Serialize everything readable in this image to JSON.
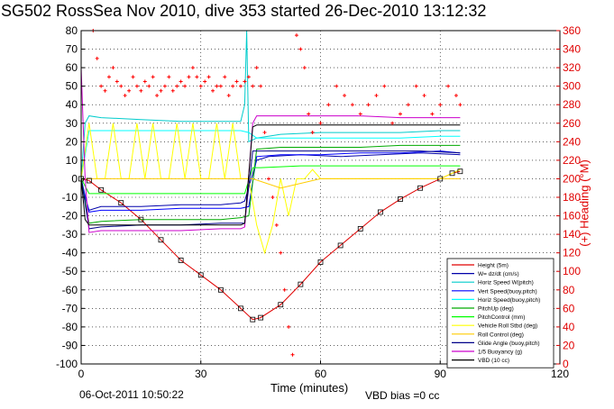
{
  "title": "SG502 RossSea Nov 2010, dive 353 started 26-Dec-2010 13:12:32",
  "footer": {
    "date": "06-Oct-2011 10:50:22",
    "vbd_bias": "VBD bias =0 cc"
  },
  "chart_data": {
    "type": "line",
    "xlabel": "Time (minutes)",
    "ylabel": "",
    "y2label": "(+) Heading (°M)",
    "xlim": [
      0,
      120
    ],
    "ylim": [
      -100,
      80
    ],
    "y2lim": [
      0,
      360
    ],
    "xticks": [
      0,
      30,
      60,
      90,
      120
    ],
    "yticks": [
      -100,
      -90,
      -80,
      -70,
      -60,
      -50,
      -40,
      -30,
      -20,
      -10,
      0,
      10,
      20,
      30,
      40,
      50,
      60,
      70,
      80
    ],
    "y2ticks": [
      0,
      20,
      40,
      60,
      80,
      100,
      120,
      140,
      160,
      180,
      200,
      220,
      240,
      260,
      280,
      300,
      320,
      340,
      360
    ],
    "grid": true,
    "legend_position": "bottom-right",
    "colors": {
      "height": "#e00000",
      "w": "#0000aa",
      "horiz_speed_w": "#00cccc",
      "vert_speed_buoy": "#0000ff",
      "horiz_speed_buoy": "#00ffff",
      "pitch_up": "#00aa00",
      "pitch_control": "#00ff00",
      "vehicle_roll": "#ffff00",
      "roll_control": "#ffcc00",
      "glide_angle": "#000088",
      "buoyancy": "#cc00cc",
      "vbd": "#000000",
      "heading": "#ff0000"
    },
    "series": [
      {
        "name": "Height (5m)",
        "key": "height",
        "x": [
          0,
          2,
          5,
          10,
          15,
          20,
          25,
          30,
          35,
          40,
          43,
          45,
          50,
          55,
          60,
          65,
          70,
          75,
          80,
          85,
          90,
          93,
          95
        ],
        "y": [
          0,
          -1,
          -6,
          -13,
          -22,
          -33,
          -44,
          -52,
          -60,
          -70,
          -76,
          -75,
          -68,
          -57,
          -45,
          -36,
          -27,
          -18,
          -11,
          -5,
          0,
          3,
          4
        ]
      },
      {
        "name": "W= dz/dt (cm/s)",
        "key": "w",
        "x": [
          0,
          1,
          2,
          5,
          15,
          25,
          35,
          40,
          41,
          44,
          47,
          55,
          65,
          75,
          85,
          95
        ],
        "y": [
          0,
          -10,
          -17,
          -15,
          -15,
          -14,
          -14,
          -13,
          -12,
          10,
          12,
          13,
          12,
          13,
          14,
          13
        ]
      },
      {
        "name": "Horiz Speed W(pitch)",
        "key": "horiz_speed_w",
        "x": [
          0,
          1,
          2,
          5,
          15,
          25,
          35,
          40,
          41,
          41.5,
          42,
          44,
          50,
          60,
          70,
          80,
          90,
          95
        ],
        "y": [
          0,
          30,
          34,
          33,
          32,
          31,
          31,
          31,
          40,
          80,
          20,
          22,
          24,
          25,
          25,
          25,
          26,
          26
        ]
      },
      {
        "name": "Vert Speed(buoy,pitch)",
        "key": "vert_speed_buoy",
        "x": [
          0,
          2,
          5,
          15,
          25,
          35,
          40,
          42,
          44,
          50,
          60,
          70,
          80,
          90,
          95
        ],
        "y": [
          0,
          -18,
          -17,
          -17,
          -16,
          -16,
          -16,
          -15,
          12,
          13,
          13,
          14,
          14,
          15,
          14
        ]
      },
      {
        "name": "Horiz Speed(buoy,pitch)",
        "key": "horiz_speed_buoy",
        "x": [
          0,
          2,
          5,
          15,
          25,
          35,
          40,
          42,
          44,
          50,
          60,
          70,
          80,
          90,
          95
        ],
        "y": [
          0,
          26,
          26,
          26,
          26,
          26,
          26,
          25,
          22,
          22,
          22,
          22,
          22,
          23,
          23
        ]
      },
      {
        "name": "PitchUp (deg)",
        "key": "pitch_up",
        "x": [
          0,
          2,
          5,
          15,
          25,
          35,
          40,
          42,
          44,
          50,
          60,
          70,
          80,
          90,
          95
        ],
        "y": [
          0,
          -24,
          -23,
          -22,
          -22,
          -22,
          -21,
          -20,
          16,
          17,
          17,
          17,
          18,
          18,
          18
        ]
      },
      {
        "name": "PitchControl (mm)",
        "key": "pitch_control",
        "x": [
          0,
          2,
          5,
          15,
          25,
          35,
          41,
          43,
          45,
          55,
          65,
          75,
          85,
          95
        ],
        "y": [
          0,
          -8,
          -8,
          -8,
          -8,
          -8,
          -8,
          6,
          6,
          7,
          7,
          7,
          7,
          7
        ]
      },
      {
        "name": "Vehicle Roll Stbd (deg)",
        "key": "vehicle_roll",
        "x": [
          0,
          2,
          4,
          6,
          8,
          10,
          12,
          14,
          16,
          18,
          20,
          22,
          24,
          26,
          28,
          30,
          32,
          34,
          36,
          38,
          40,
          42,
          44,
          46,
          48,
          50,
          52,
          54,
          56,
          58,
          60,
          65,
          70,
          75,
          80,
          85,
          90,
          95
        ],
        "y": [
          0,
          30,
          0,
          0,
          30,
          0,
          0,
          30,
          0,
          30,
          0,
          0,
          30,
          0,
          30,
          0,
          0,
          30,
          0,
          30,
          0,
          0,
          -25,
          -40,
          -25,
          0,
          -20,
          0,
          0,
          5,
          0,
          0,
          0,
          0,
          0,
          0,
          0,
          5
        ]
      },
      {
        "name": "Roll Control (deg)",
        "key": "roll_control",
        "x": [
          0,
          5,
          15,
          25,
          35,
          41,
          43,
          50,
          60,
          70,
          80,
          90,
          95
        ],
        "y": [
          0,
          0,
          0,
          0,
          0,
          0,
          0,
          -5,
          0,
          0,
          0,
          0,
          0
        ]
      },
      {
        "name": "Glide Angle (buoy,pitch)",
        "key": "glide_angle",
        "x": [
          0,
          2,
          5,
          15,
          25,
          35,
          41,
          43,
          45,
          55,
          65,
          75,
          85,
          95
        ],
        "y": [
          0,
          -27,
          -26,
          -25,
          -25,
          -24,
          -24,
          15,
          15,
          15,
          15,
          15,
          15,
          14
        ]
      },
      {
        "name": "1/5 Buoyancy (g)",
        "key": "buoyancy",
        "x": [
          0,
          1,
          2,
          5,
          15,
          25,
          35,
          40,
          41,
          43,
          44,
          50,
          60,
          70,
          80,
          90,
          95
        ],
        "y": [
          60,
          0,
          -29,
          -28,
          -28,
          -28,
          -27,
          -27,
          -26,
          30,
          34,
          34,
          34,
          34,
          33,
          33,
          33
        ]
      },
      {
        "name": "VBD (10 cc)",
        "key": "vbd",
        "x": [
          0,
          1,
          2,
          40,
          41,
          43,
          44,
          95
        ],
        "y": [
          0,
          -22,
          -25,
          -25,
          -24,
          28,
          29,
          29
        ]
      }
    ],
    "heading_series": {
      "name": "Heading",
      "x": [
        3,
        4,
        5,
        6,
        7,
        8,
        9,
        10,
        11,
        12,
        13,
        14,
        15,
        16,
        17,
        18,
        19,
        20,
        21,
        22,
        23,
        24,
        25,
        26,
        27,
        28,
        29,
        30,
        31,
        32,
        33,
        34,
        35,
        36,
        37,
        38,
        39,
        40,
        41,
        42,
        43,
        44,
        45,
        46,
        47,
        48,
        49,
        50,
        51,
        52,
        53,
        54,
        55,
        56,
        57,
        58,
        60,
        62,
        64,
        66,
        68,
        70,
        72,
        74,
        76,
        78,
        80,
        82,
        84,
        86,
        88,
        90,
        92,
        94,
        95
      ],
      "y": [
        360,
        330,
        300,
        295,
        310,
        320,
        305,
        300,
        290,
        295,
        310,
        300,
        295,
        305,
        300,
        310,
        290,
        295,
        300,
        310,
        295,
        300,
        305,
        300,
        310,
        320,
        310,
        300,
        305,
        310,
        295,
        300,
        300,
        310,
        290,
        300,
        305,
        300,
        305,
        310,
        300,
        320,
        300,
        250,
        200,
        180,
        150,
        120,
        80,
        40,
        10,
        355,
        340,
        320,
        270,
        250,
        260,
        280,
        300,
        290,
        280,
        270,
        280,
        290,
        300,
        260,
        270,
        280,
        300,
        290,
        270,
        280,
        300,
        290,
        280
      ]
    }
  }
}
